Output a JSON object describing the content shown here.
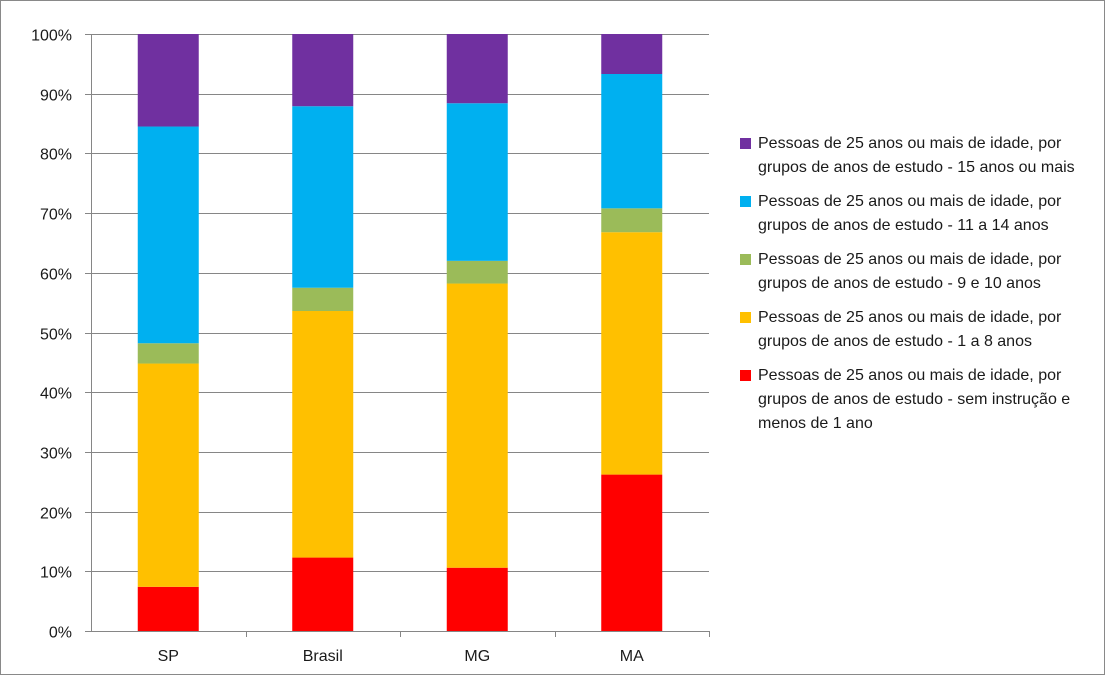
{
  "chart_data": {
    "type": "bar",
    "stacked": true,
    "percent_stacked": true,
    "title": "",
    "xlabel": "",
    "ylabel": "",
    "categories": [
      "SP",
      "Brasil",
      "MG",
      "MA"
    ],
    "ylim": [
      0,
      100
    ],
    "yticks": [
      "0%",
      "10%",
      "20%",
      "30%",
      "40%",
      "50%",
      "60%",
      "70%",
      "80%",
      "90%",
      "100%"
    ],
    "grid": true,
    "legend_position": "right",
    "series": [
      {
        "name": "Pessoas de 25 anos ou mais de idade, por grupos de anos de estudo - sem instrução e menos de 1 ano",
        "color": "#ff0000",
        "values": [
          7.4,
          12.3,
          10.6,
          26.2
        ]
      },
      {
        "name": "Pessoas de 25 anos ou mais de idade, por grupos de anos de estudo -  1 a 8 anos",
        "color": "#ffc000",
        "values": [
          37.4,
          41.3,
          47.6,
          40.6
        ]
      },
      {
        "name": "Pessoas de 25 anos ou mais de idade, por grupos de anos de estudo - 9 e 10 anos",
        "color": "#9bbb59",
        "values": [
          3.4,
          3.9,
          3.8,
          4.0
        ]
      },
      {
        "name": "Pessoas de 25 anos ou mais de idade, por grupos de anos de estudo - 11 a 14 anos",
        "color": "#00b0f0",
        "values": [
          36.3,
          30.4,
          26.4,
          22.5
        ]
      },
      {
        "name": "Pessoas de 25 anos ou mais de idade, por grupos de anos de estudo - 15 anos ou mais",
        "color": "#7030a0",
        "values": [
          15.5,
          12.1,
          11.6,
          6.7
        ]
      }
    ]
  }
}
